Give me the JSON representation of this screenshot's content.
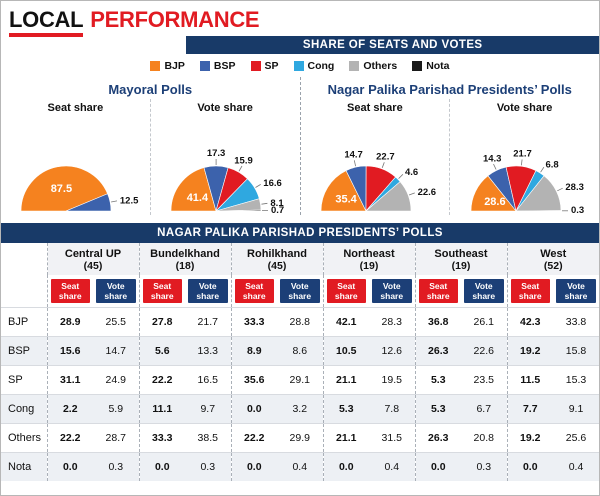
{
  "masthead": {
    "word1": "LOCAL",
    "word2": "PERFORMANCE"
  },
  "charts_header": "SHARE OF SEATS AND VOTES",
  "colors": {
    "accent_red": "#E11B22",
    "navy": "#183A68"
  },
  "legend": [
    {
      "label": "BJP",
      "color": "#F5821F"
    },
    {
      "label": "BSP",
      "color": "#3C62AC"
    },
    {
      "label": "SP",
      "color": "#E11B22"
    },
    {
      "label": "Cong",
      "color": "#2FA8E0"
    },
    {
      "label": "Others",
      "color": "#B3B3B3"
    },
    {
      "label": "Nota",
      "color": "#1A1A1A"
    }
  ],
  "chart_groups": [
    {
      "heading": "Mayoral Polls"
    },
    {
      "heading": "Nagar Palika Parishad Presidents’ Polls"
    }
  ],
  "chart_data": [
    {
      "type": "pie",
      "variant": "half-pie",
      "group": "Mayoral Polls",
      "title": "Seat share",
      "labels": [
        "BJP",
        "BSP"
      ],
      "values": [
        87.5,
        12.5
      ],
      "colors": [
        "#F5821F",
        "#3C62AC"
      ]
    },
    {
      "type": "pie",
      "variant": "half-pie",
      "group": "Mayoral Polls",
      "title": "Vote share",
      "labels": [
        "BJP",
        "BSP",
        "SP",
        "Cong",
        "Others",
        "Nota"
      ],
      "values": [
        41.4,
        17.3,
        15.9,
        16.6,
        8.1,
        0.7
      ],
      "colors": [
        "#F5821F",
        "#3C62AC",
        "#E11B22",
        "#2FA8E0",
        "#B3B3B3",
        "#1A1A1A"
      ]
    },
    {
      "type": "pie",
      "variant": "half-pie",
      "group": "Nagar Palika Parishad Presidents’ Polls",
      "title": "Seat share",
      "labels": [
        "BJP",
        "BSP",
        "SP",
        "Cong",
        "Others"
      ],
      "values": [
        35.4,
        14.7,
        22.7,
        4.6,
        22.6
      ],
      "colors": [
        "#F5821F",
        "#3C62AC",
        "#E11B22",
        "#2FA8E0",
        "#B3B3B3"
      ]
    },
    {
      "type": "pie",
      "variant": "half-pie",
      "group": "Nagar Palika Parishad Presidents’ Polls",
      "title": "Vote share",
      "labels": [
        "BJP",
        "BSP",
        "SP",
        "Cong",
        "Others",
        "Nota"
      ],
      "values": [
        28.6,
        14.3,
        21.7,
        6.8,
        28.3,
        0.3
      ],
      "colors": [
        "#F5821F",
        "#3C62AC",
        "#E11B22",
        "#2FA8E0",
        "#B3B3B3",
        "#1A1A1A"
      ]
    },
    {
      "type": "table",
      "title": "NAGAR PALIKA PARISHAD PRESIDENTS’ POLLS",
      "regions": [
        {
          "name": "Central UP",
          "count": "(45)"
        },
        {
          "name": "Bundelkhand",
          "count": "(18)"
        },
        {
          "name": "Rohilkhand",
          "count": "(45)"
        },
        {
          "name": "Northeast",
          "count": "(19)"
        },
        {
          "name": "Southeast",
          "count": "(19)"
        },
        {
          "name": "West",
          "count": "(52)"
        }
      ],
      "sub_headers": {
        "seat": "Seat share",
        "vote": "Vote share"
      },
      "rows": [
        {
          "party": "BJP",
          "values": [
            [
              "28.9",
              "25.5"
            ],
            [
              "27.8",
              "21.7"
            ],
            [
              "33.3",
              "28.8"
            ],
            [
              "42.1",
              "28.3"
            ],
            [
              "36.8",
              "26.1"
            ],
            [
              "42.3",
              "33.8"
            ]
          ]
        },
        {
          "party": "BSP",
          "values": [
            [
              "15.6",
              "14.7"
            ],
            [
              "5.6",
              "13.3"
            ],
            [
              "8.9",
              "8.6"
            ],
            [
              "10.5",
              "12.6"
            ],
            [
              "26.3",
              "22.6"
            ],
            [
              "19.2",
              "15.8"
            ]
          ]
        },
        {
          "party": "SP",
          "values": [
            [
              "31.1",
              "24.9"
            ],
            [
              "22.2",
              "16.5"
            ],
            [
              "35.6",
              "29.1"
            ],
            [
              "21.1",
              "19.5"
            ],
            [
              "5.3",
              "23.5"
            ],
            [
              "11.5",
              "15.3"
            ]
          ]
        },
        {
          "party": "Cong",
          "values": [
            [
              "2.2",
              "5.9"
            ],
            [
              "11.1",
              "9.7"
            ],
            [
              "0.0",
              "3.2"
            ],
            [
              "5.3",
              "7.8"
            ],
            [
              "5.3",
              "6.7"
            ],
            [
              "7.7",
              "9.1"
            ]
          ]
        },
        {
          "party": "Others",
          "values": [
            [
              "22.2",
              "28.7"
            ],
            [
              "33.3",
              "38.5"
            ],
            [
              "22.2",
              "29.9"
            ],
            [
              "21.1",
              "31.5"
            ],
            [
              "26.3",
              "20.8"
            ],
            [
              "19.2",
              "25.6"
            ]
          ]
        },
        {
          "party": "Nota",
          "values": [
            [
              "0.0",
              "0.3"
            ],
            [
              "0.0",
              "0.3"
            ],
            [
              "0.0",
              "0.4"
            ],
            [
              "0.0",
              "0.4"
            ],
            [
              "0.0",
              "0.3"
            ],
            [
              "0.0",
              "0.4"
            ]
          ]
        }
      ]
    }
  ]
}
